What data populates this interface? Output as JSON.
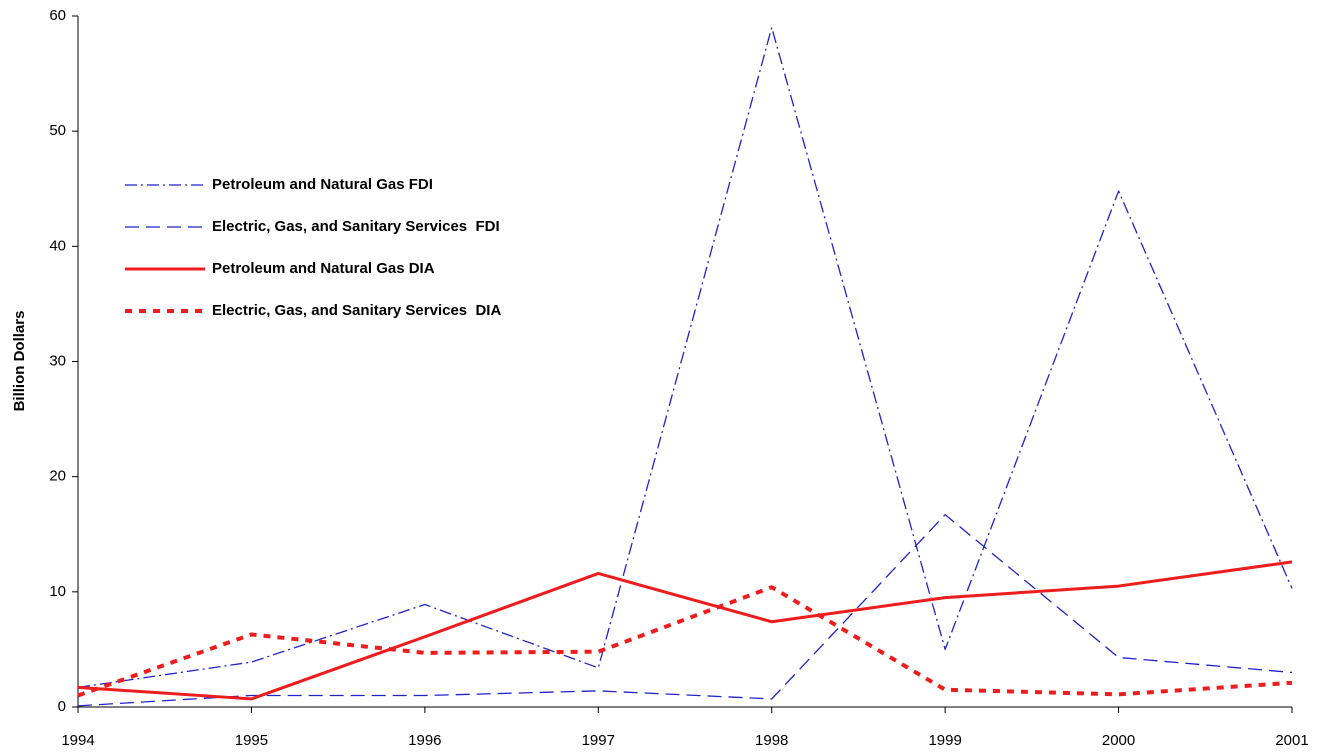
{
  "chart_data": {
    "type": "line",
    "y_label": "Billion Dollars",
    "categories": [
      "1994",
      "1995",
      "1996",
      "1997",
      "1998",
      "1999",
      "2000",
      "2001"
    ],
    "ylim": [
      0,
      60
    ],
    "yticks": [
      0,
      10,
      20,
      30,
      40,
      50,
      60
    ],
    "grid": false,
    "legend": "left",
    "series": [
      {
        "name": "Petroleum and Natural Gas FDI",
        "color": "#2222cc",
        "linestyle": "dashdot",
        "values": [
          1.7,
          3.9,
          8.9,
          3.4,
          59,
          5,
          44.8,
          10.3
        ]
      },
      {
        "name": "Electric, Gas, and Sanitary Services  FDI",
        "color": "#2222cc",
        "linestyle": "dashed",
        "values": [
          0.1,
          1.0,
          1.0,
          1.4,
          0.7,
          16.7,
          4.3,
          3.0
        ]
      },
      {
        "name": "Petroleum and Natural Gas DIA",
        "color": "#ee1c1c",
        "linestyle": "solid",
        "values": [
          1.7,
          0.7,
          6.1,
          11.6,
          7.4,
          9.5,
          10.5,
          12.6
        ]
      },
      {
        "name": "Electric, Gas, and Sanitary Services  DIA",
        "color": "#ee1c1c",
        "linestyle": "dotted",
        "values": [
          1.0,
          6.3,
          4.7,
          4.8,
          10.4,
          1.5,
          1.1,
          2.1
        ]
      }
    ]
  }
}
